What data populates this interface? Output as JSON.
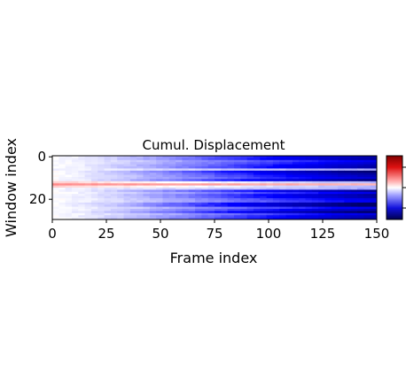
{
  "chart_data": {
    "type": "heatmap",
    "title": "Cumul. Displacement",
    "xlabel": "Frame index",
    "ylabel": "Window index",
    "x_range": [
      0,
      150
    ],
    "y_range": [
      0,
      30
    ],
    "y_axis_inverted": true,
    "x_ticks": [
      "0",
      "25",
      "50",
      "75",
      "100",
      "125",
      "150"
    ],
    "y_ticks": [
      "0",
      "20"
    ],
    "colormap": "seismic",
    "colorbar": {
      "present": true,
      "tick_labels_visible": false,
      "tick_count": 3
    },
    "rows": 30,
    "frames": 150,
    "highlight_band": {
      "window_index": 13,
      "sign": "positive",
      "description_color": "#f3a59a"
    },
    "trend": "values near zero at frame 0, becoming increasingly negative toward frame 150 for most windows",
    "colors": {
      "positive": "#b40000",
      "neutral": "#ffffff",
      "negative": "#00008b"
    }
  }
}
